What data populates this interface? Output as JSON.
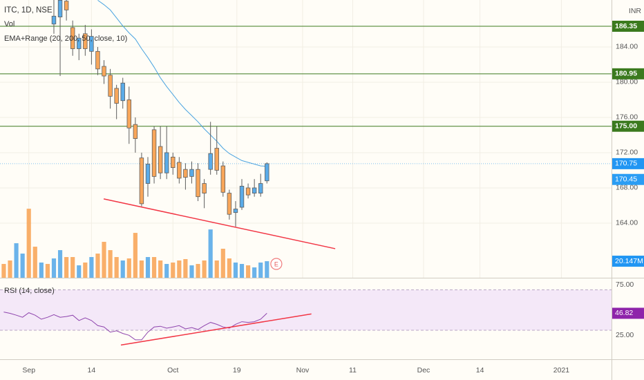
{
  "chart_data": {
    "type": "candlestick",
    "title": "ITC, 1D, NSE",
    "currency": "INR",
    "up_color": "#5aabe8",
    "down_color": "#f8a65a",
    "wick_color": "#5d5d5d",
    "grid": true,
    "x": [
      0,
      1,
      2,
      3,
      4,
      5,
      6,
      7,
      8,
      9,
      10,
      11,
      12,
      13,
      14,
      15,
      16,
      17,
      18,
      19,
      20,
      21,
      22,
      23,
      24,
      25,
      26,
      27,
      28,
      29,
      30,
      31,
      32,
      33,
      34
    ],
    "open": [
      186.6,
      187.4,
      189.2,
      186.2,
      183.8,
      185.5,
      183.5,
      183.5,
      181.8,
      180.8,
      179.3,
      177.9,
      178,
      175.2,
      171.4,
      168.5,
      174.6,
      172.7,
      169.7,
      171.5,
      170.9,
      170.1,
      169.3,
      170.1,
      168.5,
      170.1,
      172.5,
      170.5,
      167.4,
      165.2,
      165.8,
      168,
      167.4,
      167.4,
      168.8
    ],
    "high": [
      189.5,
      189.5,
      189.5,
      187,
      185.5,
      186.5,
      186,
      184,
      182.5,
      181.5,
      179.7,
      180.5,
      179.5,
      176,
      172,
      171.5,
      175,
      175,
      175,
      172,
      171.5,
      170.8,
      171,
      170.8,
      169,
      175.5,
      175,
      171,
      167.8,
      166.5,
      169,
      168.5,
      169,
      169.6,
      170.9
    ],
    "low": [
      185.5,
      180.7,
      187,
      183,
      182.5,
      183,
      182,
      180.8,
      179.8,
      177,
      175.8,
      177,
      173,
      172,
      165.9,
      167,
      168.5,
      169,
      169,
      169.5,
      168.5,
      167.8,
      168.5,
      166.5,
      165.7,
      169.5,
      169.5,
      167,
      164.4,
      163.6,
      165.5,
      166.8,
      167,
      167,
      168.5
    ],
    "close": [
      187.5,
      189.3,
      188.2,
      183.8,
      185,
      183.8,
      185.2,
      181.5,
      180.7,
      178.4,
      177.6,
      179.9,
      174.8,
      173.6,
      166.2,
      170.7,
      169.3,
      169.7,
      172,
      170.3,
      169.1,
      169.2,
      170.1,
      167,
      167.4,
      171.9,
      170,
      167.5,
      165,
      165.6,
      168.2,
      167.2,
      168,
      168.5,
      170.75
    ],
    "xlim": [
      -8.6,
      89
    ],
    "xticks": [
      {
        "value": -4,
        "label": "Sep"
      },
      {
        "value": 6,
        "label": "14"
      },
      {
        "value": 19,
        "label": "Oct"
      },
      {
        "value": 29.2,
        "label": "19"
      },
      {
        "value": 39.7,
        "label": "Nov"
      },
      {
        "value": 47.7,
        "label": "11"
      },
      {
        "value": 59,
        "label": "Dec"
      },
      {
        "value": 68,
        "label": "14"
      },
      {
        "value": 81,
        "label": "2021"
      }
    ],
    "ylim": [
      157.8,
      189.33
    ],
    "yticks": [
      {
        "value": 164,
        "label": "164.00"
      },
      {
        "value": 168,
        "label": "168.00"
      },
      {
        "value": 172,
        "label": "172.00"
      },
      {
        "value": 176,
        "label": "176.00"
      },
      {
        "value": 180,
        "label": "180.00"
      },
      {
        "value": 184,
        "label": "184.00"
      }
    ],
    "last_price": {
      "value": 170.75,
      "label": "170.75"
    },
    "levels": {
      "color": "#3b7a1e",
      "items": [
        {
          "value": 186.35,
          "label": "186.35"
        },
        {
          "value": 180.95,
          "label": "180.95"
        },
        {
          "value": 175,
          "label": "175.00"
        }
      ]
    },
    "trendline": {
      "color": "#f23645",
      "x": [
        7.95,
        44.9
      ],
      "values": [
        166.75,
        161.1
      ]
    },
    "ema": {
      "name": "EMA+Range (20, 200, 50, close, 10)",
      "color": "#4aa3e0",
      "x": [
        7,
        8,
        9,
        10,
        11,
        12,
        13,
        14,
        15,
        16,
        17,
        18,
        19,
        20,
        21,
        22,
        23,
        24,
        25,
        26,
        27,
        28,
        29,
        30,
        31,
        32,
        33,
        34
      ],
      "values": [
        189.3,
        188.8,
        188.2,
        187.3,
        186.4,
        185.6,
        184.9,
        183.8,
        182.8,
        181.7,
        180.5,
        179.5,
        178.6,
        177.7,
        176.9,
        176.2,
        175.5,
        174.7,
        174.0,
        173.3,
        172.5,
        171.9,
        171.5,
        171.1,
        170.9,
        170.7,
        170.5,
        170.45
      ],
      "current": {
        "value": 170.45,
        "label": "170.45"
      }
    },
    "volume": {
      "name": "Vol",
      "x": [
        -8,
        -7,
        -6,
        -5,
        -4,
        -3,
        -2,
        -1,
        0,
        1,
        2,
        3,
        4,
        5,
        6,
        7,
        8,
        9,
        10,
        11,
        12,
        13,
        14,
        15,
        16,
        17,
        18,
        19,
        20,
        21,
        22,
        23,
        24,
        25,
        26,
        27,
        28,
        29,
        30,
        31,
        32,
        33,
        34
      ],
      "values": [
        16.8,
        21,
        42,
        29.4,
        84,
        37.8,
        18.5,
        16.8,
        23.5,
        33.6,
        25.2,
        25.2,
        15.1,
        18.5,
        25.2,
        29.4,
        43.7,
        33.6,
        25.2,
        21,
        23.5,
        54.6,
        21,
        25.2,
        25.2,
        21,
        16.8,
        18.5,
        21,
        22.7,
        15.1,
        16.8,
        21,
        58.8,
        21,
        35.3,
        23.5,
        18.5,
        16.8,
        15.1,
        12.6,
        18.5,
        20.147
      ],
      "up": [
        false,
        false,
        true,
        true,
        false,
        false,
        true,
        false,
        true,
        true,
        false,
        false,
        true,
        false,
        true,
        false,
        false,
        false,
        false,
        true,
        false,
        false,
        false,
        true,
        false,
        false,
        true,
        false,
        false,
        false,
        true,
        false,
        false,
        true,
        false,
        false,
        false,
        true,
        true,
        false,
        true,
        true,
        true
      ],
      "ylim": [
        0,
        338
      ],
      "current": {
        "value": 20.147,
        "label": "20.147M"
      }
    },
    "earnings": {
      "label": "E",
      "x": 35.5
    },
    "rsi": {
      "name": "RSI (14, close)",
      "color": "#8e44ad",
      "band_color": "#f1e2f8",
      "x": [
        -8,
        -7,
        -6,
        -5,
        -4,
        -3,
        -2,
        -1,
        0,
        1,
        2,
        3,
        4,
        5,
        6,
        7,
        8,
        9,
        10,
        11,
        12,
        13,
        14,
        15,
        16,
        17,
        18,
        19,
        20,
        21,
        22,
        23,
        24,
        25,
        26,
        27,
        28,
        29,
        30,
        31,
        32,
        33,
        34
      ],
      "values": [
        48.1,
        46.8,
        44.9,
        42.9,
        47.4,
        44.9,
        41.0,
        42.9,
        45.5,
        42.9,
        43.6,
        44.9,
        39.7,
        42.3,
        39.7,
        34.6,
        33.3,
        28.2,
        29.5,
        26.9,
        25,
        20.5,
        20.5,
        28.2,
        33.3,
        34.0,
        32.1,
        33.3,
        34.6,
        31.4,
        32.7,
        30.8,
        34.6,
        37.8,
        35.9,
        33.3,
        32.1,
        35.9,
        38.5,
        37.8,
        38.5,
        41.0,
        46.82
      ],
      "ylim": [
        1.3,
        82
      ],
      "yticks": [
        {
          "value": 75,
          "label": "75.00"
        },
        {
          "value": 25,
          "label": "25.00"
        }
      ],
      "band": [
        30,
        70
      ],
      "current": {
        "value": 46.82,
        "label": "46.82"
      },
      "trendline": {
        "color": "#f23645",
        "x": [
          10.7,
          41.1
        ],
        "values": [
          15.4,
          46.2
        ]
      }
    }
  }
}
